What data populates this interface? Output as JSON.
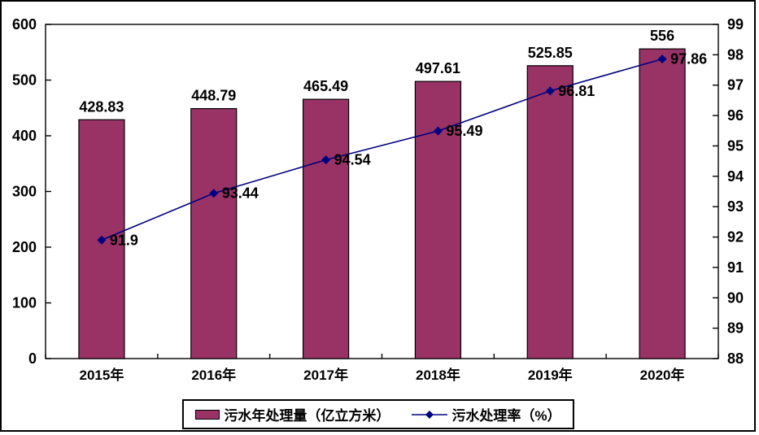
{
  "chart": {
    "background_color": "#ffffff",
    "frame_color": "#000000",
    "bar_color": "#993366",
    "line_color": "#000080",
    "text_color": "#000000"
  },
  "chart_data": {
    "type": "bar+line",
    "title": "",
    "categories": [
      "2015年",
      "2016年",
      "2017年",
      "2018年",
      "2019年",
      "2020年"
    ],
    "series": [
      {
        "name": "污水年处理量（亿立方米）",
        "type": "bar",
        "axis": "left",
        "color": "#993366",
        "values": [
          428.83,
          448.79,
          465.49,
          497.61,
          525.85,
          556
        ],
        "labels": [
          "428.83",
          "448.79",
          "465.49",
          "497.61",
          "525.85",
          "556"
        ]
      },
      {
        "name": "污水处理率（%）",
        "type": "line",
        "axis": "right",
        "color": "#000080",
        "marker": "diamond",
        "values": [
          91.9,
          93.44,
          94.54,
          95.49,
          96.81,
          97.86
        ],
        "labels": [
          "91.9",
          "93.44",
          "94.54",
          "95.49",
          "96.81",
          "97.86"
        ]
      }
    ],
    "left_axis": {
      "min": 0,
      "max": 600,
      "step": 100,
      "ticks": [
        "0",
        "100",
        "200",
        "300",
        "400",
        "500",
        "600"
      ]
    },
    "right_axis": {
      "min": 88,
      "max": 99,
      "step": 1,
      "ticks": [
        "88",
        "89",
        "90",
        "91",
        "92",
        "93",
        "94",
        "95",
        "96",
        "97",
        "98",
        "99"
      ]
    },
    "grid": false,
    "legend_position": "bottom"
  },
  "legend": {
    "items": [
      {
        "label": "污水年处理量（亿立方米）",
        "swatch": "bar"
      },
      {
        "label": "污水处理率（%）",
        "swatch": "line"
      }
    ]
  }
}
